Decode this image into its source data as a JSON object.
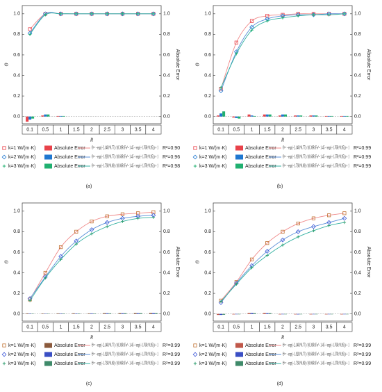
{
  "chart_data": [
    {
      "type": "combo",
      "panel_label": "(a)",
      "ylabel": "Θ",
      "y2label": "Absolute Error",
      "xlabel": "R",
      "categories": [
        "0.1",
        "0.5",
        "1",
        "1.5",
        "2",
        "2.5",
        "3",
        "3.5",
        "4"
      ],
      "ylim": [
        -0.07,
        1.08
      ],
      "yticks": [
        {
          "value": 0,
          "label": "0.0"
        },
        {
          "value": 0.2,
          "label": "0.2"
        },
        {
          "value": 0.4,
          "label": "0.4"
        },
        {
          "value": 0.6,
          "label": "0.6"
        },
        {
          "value": 0.8,
          "label": "0.8"
        },
        {
          "value": 1,
          "label": "1.0"
        }
      ],
      "y2ticks": [
        {
          "value": 0,
          "label": "0.0"
        },
        {
          "value": 0.2,
          "label": "0.2"
        },
        {
          "value": 0.4,
          "label": "0.4"
        },
        {
          "value": 0.6,
          "label": "0.6"
        },
        {
          "value": 0.8,
          "label": "0.8"
        },
        {
          "value": 1,
          "label": "1.0"
        }
      ],
      "series": [
        {
          "name": "k=1 W/(m·K)",
          "marker": "square",
          "color": "#e8424a",
          "fit_color": "#f08a8a",
          "fit_label": "Θ = −exp(−2.14R^0.77) / (0.39R·Fo^−1.45 + exp(−1.76R^0.95)) + 1",
          "r2_label": "R²=0.90",
          "values": [
            0.85,
            1.0,
            1.0,
            1.0,
            1.0,
            1.0,
            1.0,
            1.0,
            1.0
          ]
        },
        {
          "name": "k=2 W/(m·K)",
          "marker": "diamond",
          "color": "#1f77d0",
          "fit_color": "#5a8fd8",
          "fit_label": "Θ = −exp(−1.92R^0.77) / (0.60R·Fo^−1.45 + exp(−1.57R^0.95)) + 1",
          "r2_label": "R²=0.96",
          "values": [
            0.81,
            1.0,
            1.0,
            1.0,
            1.0,
            1.0,
            1.0,
            1.0,
            1.0
          ]
        },
        {
          "name": "k=3 W/(m·K)",
          "marker": "plus",
          "color": "#20b070",
          "fit_color": "#30b0a0",
          "fit_label": "Θ = −exp(−1.73R^0.69) / (0.86R·Fo^−1.45 + exp(−1.37R^0.95)) + 1",
          "r2_label": "R²=0.98",
          "values": [
            0.8,
            0.99,
            1.0,
            1.0,
            1.0,
            1.0,
            1.0,
            1.0,
            1.0
          ]
        }
      ],
      "errors": [
        {
          "name": "Absolute Error",
          "color": "#e8424a",
          "values": [
            -0.05,
            0.01,
            0.005,
            0,
            0,
            0,
            0,
            0,
            0
          ]
        },
        {
          "name": "Absolute Error",
          "color": "#1f77d0",
          "values": [
            -0.03,
            0.02,
            0.005,
            0,
            0,
            0,
            0,
            0,
            0
          ]
        },
        {
          "name": "Absolute Error",
          "color": "#20b070",
          "values": [
            -0.02,
            0.02,
            0.005,
            0,
            0,
            0,
            0,
            0,
            0
          ]
        }
      ]
    },
    {
      "type": "combo",
      "panel_label": "(b)",
      "ylabel": "Θ",
      "y2label": "Absolute Error",
      "xlabel": "R",
      "categories": [
        "0.1",
        "0.5",
        "1",
        "1.5",
        "2",
        "2.5",
        "3",
        "3.5",
        "4"
      ],
      "ylim": [
        -0.07,
        1.08
      ],
      "yticks": [
        {
          "value": 0,
          "label": "0.0"
        },
        {
          "value": 0.2,
          "label": "0.2"
        },
        {
          "value": 0.4,
          "label": "0.4"
        },
        {
          "value": 0.6,
          "label": "0.6"
        },
        {
          "value": 0.8,
          "label": "0.8"
        },
        {
          "value": 1,
          "label": "1.0"
        }
      ],
      "y2ticks": [
        {
          "value": 0,
          "label": "0.0"
        },
        {
          "value": 0.2,
          "label": "0.2"
        },
        {
          "value": 0.4,
          "label": "0.4"
        },
        {
          "value": 0.6,
          "label": "0.6"
        },
        {
          "value": 0.8,
          "label": "0.8"
        },
        {
          "value": 1,
          "label": "1.0"
        }
      ],
      "series": [
        {
          "name": "k=1 W/(m·K)",
          "marker": "square",
          "color": "#e8424a",
          "fit_color": "#f08a8a",
          "fit_label": "Θ = −exp(−2.14R^0.77) / (0.39R·Fo^−1.45 + exp(−1.76R^0.95)) + 1",
          "r2_label": "R²=0.99",
          "values": [
            0.27,
            0.72,
            0.93,
            0.98,
            0.99,
            1.0,
            1.0,
            1.0,
            1.0
          ]
        },
        {
          "name": "k=2 W/(m·K)",
          "marker": "diamond",
          "color": "#1f77d0",
          "fit_color": "#5a8fd8",
          "fit_label": "Θ = −exp(−1.92R^0.77) / (0.60R·Fo^−1.45 + exp(−1.57R^0.95)) + 1",
          "r2_label": "R²=0.99",
          "values": [
            0.25,
            0.63,
            0.87,
            0.95,
            0.98,
            0.99,
            0.99,
            1.0,
            1.0
          ]
        },
        {
          "name": "k=3 W/(m·K)",
          "marker": "plus",
          "color": "#20b070",
          "fit_color": "#30b0a0",
          "fit_label": "Θ = −exp(−1.73R^0.69) / (0.86R·Fo^−1.45 + exp(−1.37R^0.95)) + 1",
          "r2_label": "R²=0.99",
          "values": [
            0.28,
            0.61,
            0.84,
            0.93,
            0.96,
            0.98,
            0.99,
            0.99,
            1.0
          ]
        }
      ],
      "errors": [
        {
          "name": "Absolute Error",
          "color": "#e8424a",
          "values": [
            0.01,
            -0.01,
            0.02,
            0.02,
            0.01,
            0.01,
            0.01,
            0.005,
            0.005
          ]
        },
        {
          "name": "Absolute Error",
          "color": "#1f77d0",
          "values": [
            0.03,
            -0.015,
            0.01,
            0.02,
            0.02,
            0.01,
            0.01,
            0.005,
            0.005
          ]
        },
        {
          "name": "Absolute Error",
          "color": "#20b070",
          "values": [
            0.05,
            -0.02,
            0.005,
            0.02,
            0.02,
            0.01,
            0.01,
            0.005,
            0.005
          ]
        }
      ]
    },
    {
      "type": "combo",
      "panel_label": "(c)",
      "ylabel": "Θ",
      "y2label": "Absolute Error",
      "xlabel": "R",
      "categories": [
        "0.1",
        "0.5",
        "1",
        "1.5",
        "2",
        "2.5",
        "3",
        "3.5",
        "4"
      ],
      "ylim": [
        -0.07,
        1.08
      ],
      "yticks": [
        {
          "value": 0,
          "label": "0.0"
        },
        {
          "value": 0.2,
          "label": "0.2"
        },
        {
          "value": 0.4,
          "label": "0.4"
        },
        {
          "value": 0.6,
          "label": "0.6"
        },
        {
          "value": 0.8,
          "label": "0.8"
        },
        {
          "value": 1,
          "label": "1.0"
        }
      ],
      "y2ticks": [
        {
          "value": 0,
          "label": "0.0"
        },
        {
          "value": 0.2,
          "label": "0.2"
        },
        {
          "value": 0.4,
          "label": "0.4"
        },
        {
          "value": 0.6,
          "label": "0.6"
        },
        {
          "value": 0.8,
          "label": "0.8"
        },
        {
          "value": 1,
          "label": "1.0"
        }
      ],
      "series": [
        {
          "name": "k=1 W/(m·K)",
          "marker": "square",
          "color": "#c07030",
          "fit_color": "#f08a8a",
          "fit_label": "Θ = −exp(−2.14R^0.77) / (0.39R·Fo^−1.45 + exp(−1.76R^0.95)) + 1",
          "r2_label": "R²=0.99",
          "values": [
            0.14,
            0.4,
            0.65,
            0.8,
            0.9,
            0.95,
            0.97,
            0.98,
            0.99
          ]
        },
        {
          "name": "k=2 W/(m·K)",
          "marker": "diamond",
          "color": "#3a55d8",
          "fit_color": "#5a8fd8",
          "fit_label": "Θ = −exp(−1.92R^0.77) / (0.60R·Fo^−1.45 + exp(−1.57R^0.95)) + 1",
          "r2_label": "R²=0.99",
          "values": [
            0.15,
            0.36,
            0.56,
            0.71,
            0.82,
            0.89,
            0.93,
            0.95,
            0.96
          ]
        },
        {
          "name": "k=3 W/(m·K)",
          "marker": "plus",
          "color": "#2e9e6e",
          "fit_color": "#30b0a0",
          "fit_label": "Θ = −exp(−1.73R^0.69) / (0.86R·Fo^−1.45 + exp(−1.37R^0.95)) + 1",
          "r2_label": "R²=0.99",
          "values": [
            0.13,
            0.35,
            0.53,
            0.68,
            0.78,
            0.85,
            0.9,
            0.93,
            0.94
          ]
        }
      ],
      "errors": [
        {
          "name": "Absolute Error",
          "color": "#8b5a3c",
          "values": [
            0.005,
            0.004,
            0.005,
            0.006,
            0.005,
            0.008,
            0.008,
            0.009,
            0.01
          ]
        },
        {
          "name": "Absolute Error",
          "color": "#3a4fc4",
          "values": [
            0.004,
            0.003,
            0.004,
            0.004,
            0.005,
            0.007,
            0.007,
            0.008,
            0.009
          ]
        },
        {
          "name": "Absolute Error",
          "color": "#3f8a6a",
          "values": [
            0.003,
            0.003,
            0.004,
            0.004,
            0.004,
            0.006,
            0.007,
            0.008,
            0.008
          ]
        }
      ]
    },
    {
      "type": "combo",
      "panel_label": "(d)",
      "ylabel": "Θ",
      "y2label": "Absolute Error",
      "xlabel": "R",
      "categories": [
        "0.1",
        "0.5",
        "1",
        "1.5",
        "2",
        "2.5",
        "3",
        "3.5",
        "4"
      ],
      "ylim": [
        -0.07,
        1.08
      ],
      "yticks": [
        {
          "value": 0,
          "label": "0.0"
        },
        {
          "value": 0.2,
          "label": "0.2"
        },
        {
          "value": 0.4,
          "label": "0.4"
        },
        {
          "value": 0.6,
          "label": "0.6"
        },
        {
          "value": 0.8,
          "label": "0.8"
        },
        {
          "value": 1,
          "label": "1.0"
        }
      ],
      "y2ticks": [
        {
          "value": 0,
          "label": "0.0"
        },
        {
          "value": 0.2,
          "label": "0.2"
        },
        {
          "value": 0.4,
          "label": "0.4"
        },
        {
          "value": 0.6,
          "label": "0.6"
        },
        {
          "value": 0.8,
          "label": "0.8"
        },
        {
          "value": 1,
          "label": "1.0"
        }
      ],
      "series": [
        {
          "name": "k=1 W/(m·K)",
          "marker": "square",
          "color": "#c07030",
          "fit_color": "#f08a8a",
          "fit_label": "Θ = −exp(−2.14R^0.77) / (0.39R·Fo^−1.45 + exp(−1.76R^0.95)) + 1",
          "r2_label": "R²=0.99",
          "values": [
            0.13,
            0.31,
            0.53,
            0.69,
            0.8,
            0.88,
            0.93,
            0.96,
            0.98
          ]
        },
        {
          "name": "k=2 W/(m·K)",
          "marker": "diamond",
          "color": "#3a55d8",
          "fit_color": "#5a8fd8",
          "fit_label": "Θ = −exp(−1.92R^0.77) / (0.60R·Fo^−1.45 + exp(−1.57R^0.95)) + 1",
          "r2_label": "R²=0.99",
          "values": [
            0.11,
            0.3,
            0.47,
            0.61,
            0.72,
            0.8,
            0.85,
            0.89,
            0.93
          ]
        },
        {
          "name": "k=3 W/(m·K)",
          "marker": "plus",
          "color": "#2e9e6e",
          "fit_color": "#30b0a0",
          "fit_label": "Θ = −exp(−1.73R^0.69) / (0.86R·Fo^−1.45 + exp(−1.37R^0.95)) + 1",
          "r2_label": "R²=0.99",
          "values": [
            0.12,
            0.29,
            0.45,
            0.57,
            0.67,
            0.75,
            0.81,
            0.86,
            0.89
          ]
        }
      ],
      "errors": [
        {
          "name": "Absolute Error",
          "color": "#c0584a",
          "values": [
            -0.01,
            -0.005,
            0.01,
            0.01,
            -0.005,
            -0.005,
            -0.005,
            -0.005,
            -0.005
          ]
        },
        {
          "name": "Absolute Error",
          "color": "#3a4fc4",
          "values": [
            -0.01,
            -0.004,
            0.01,
            0.008,
            -0.004,
            -0.005,
            -0.004,
            -0.004,
            -0.004
          ]
        },
        {
          "name": "Absolute Error",
          "color": "#3f8a6a",
          "values": [
            -0.008,
            -0.004,
            0.008,
            0.008,
            -0.004,
            -0.004,
            -0.004,
            -0.004,
            -0.004
          ]
        }
      ]
    }
  ]
}
